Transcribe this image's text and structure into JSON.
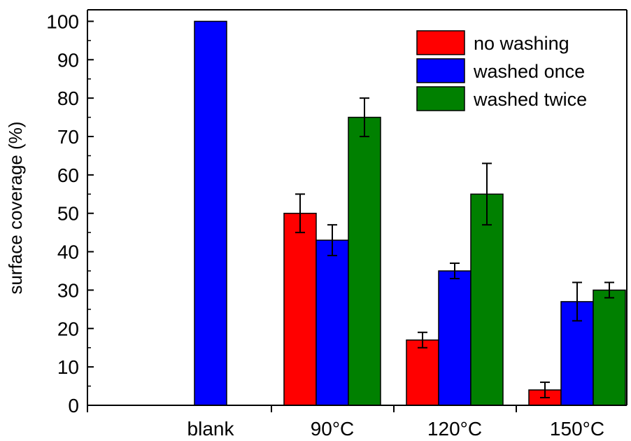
{
  "chart_data": {
    "type": "bar",
    "categories": [
      "blank",
      "90°C",
      "120°C",
      "150°C"
    ],
    "series": [
      {
        "name": "no washing",
        "color": "#ff0000",
        "values": [
          null,
          50,
          17,
          4
        ],
        "errors": [
          null,
          5,
          2,
          2
        ]
      },
      {
        "name": "washed once",
        "color": "#0000ff",
        "values": [
          100,
          43,
          35,
          27
        ],
        "errors": [
          null,
          4,
          2,
          5
        ]
      },
      {
        "name": "washed twice",
        "color": "#008000",
        "values": [
          null,
          75,
          55,
          30
        ],
        "errors": [
          null,
          5,
          8,
          2
        ]
      }
    ],
    "ylabel": "surface coverage (%)",
    "xlabel": "",
    "ylim": [
      0,
      103
    ],
    "yticks": [
      0,
      10,
      20,
      30,
      40,
      50,
      60,
      70,
      80,
      90,
      100
    ],
    "grid": false,
    "legend_position": "top-right"
  }
}
